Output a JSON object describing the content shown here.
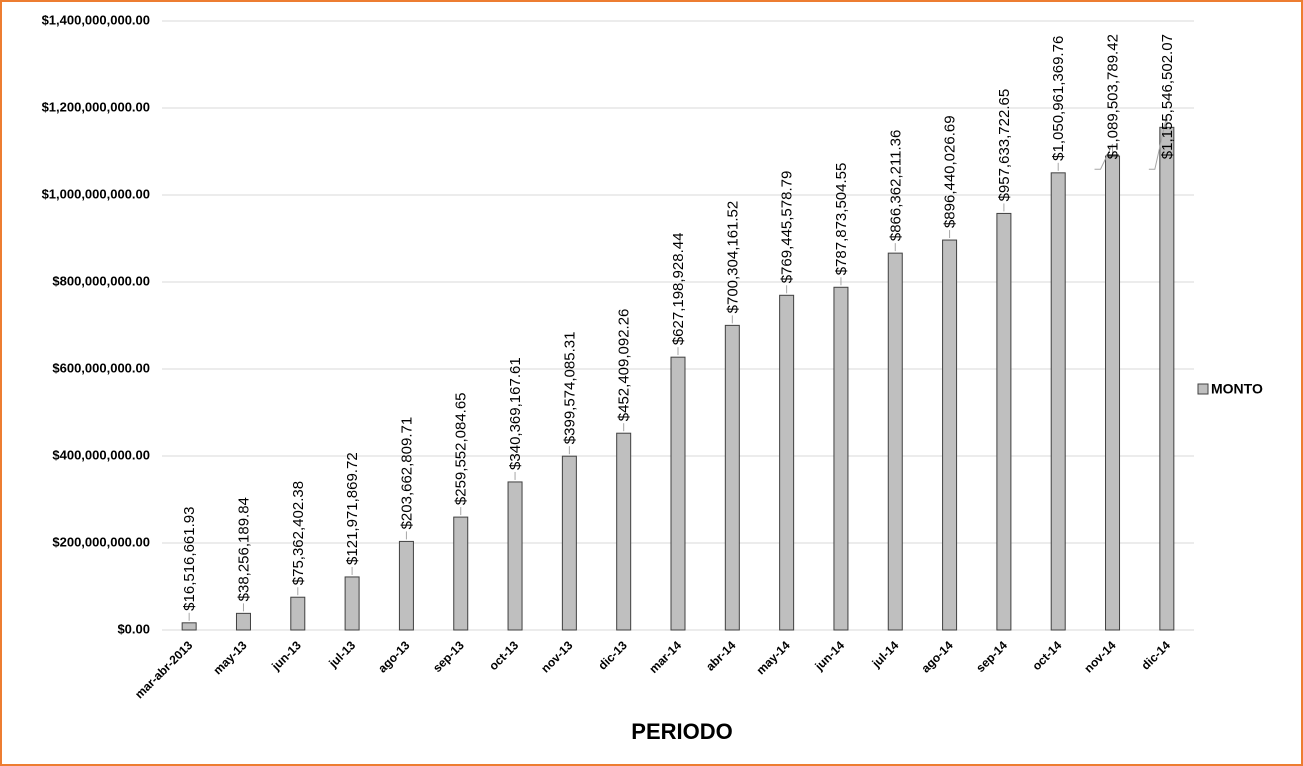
{
  "chart_data": {
    "type": "bar",
    "x_label": "PERIODO",
    "categories": [
      "mar-abr-2013",
      "may-13",
      "jun-13",
      "jul-13",
      "ago-13",
      "sep-13",
      "oct-13",
      "nov-13",
      "dic-13",
      "mar-14",
      "abr-14",
      "may-14",
      "jun-14",
      "jul-14",
      "ago-14",
      "sep-14",
      "oct-14",
      "nov-14",
      "dic-14"
    ],
    "series": [
      {
        "name": "MONTO",
        "color": "#bfbfbf",
        "values": [
          16516661.93,
          38256189.84,
          75362402.38,
          121971869.72,
          203662809.71,
          259552084.65,
          340369167.61,
          399574085.31,
          452409092.26,
          627198928.44,
          700304161.52,
          769445578.79,
          787873504.55,
          866362211.36,
          896440026.69,
          957633722.65,
          1050961369.76,
          1089503789.42,
          1155546502.07
        ],
        "value_labels": [
          "$16,516,661.93",
          "$38,256,189.84",
          "$75,362,402.38",
          "$121,971,869.72",
          "$203,662,809.71",
          "$259,552,084.65",
          "$340,369,167.61",
          "$399,574,085.31",
          "$452,409,092.26",
          "$627,198,928.44",
          "$700,304,161.52",
          "$769,445,578.79",
          "$787,873,504.55",
          "$866,362,211.36",
          "$896,440,026.69",
          "$957,633,722.65",
          "$1,050,961,369.76",
          "$1,089,503,789.42",
          "$1,155,546,502.07"
        ]
      }
    ],
    "ylim": [
      0,
      1400000000
    ],
    "yticks": [
      {
        "value": 0,
        "label": "$0.00"
      },
      {
        "value": 200000000,
        "label": "$200,000,000.00"
      },
      {
        "value": 400000000,
        "label": "$400,000,000.00"
      },
      {
        "value": 600000000,
        "label": "$600,000,000.00"
      },
      {
        "value": 800000000,
        "label": "$800,000,000.00"
      },
      {
        "value": 1000000000,
        "label": "$1,000,000,000.00"
      },
      {
        "value": 1200000000,
        "label": "$1,200,000,000.00"
      },
      {
        "value": 1400000000,
        "label": "$1,400,000,000.00"
      }
    ],
    "grid": true,
    "legend": "right"
  }
}
